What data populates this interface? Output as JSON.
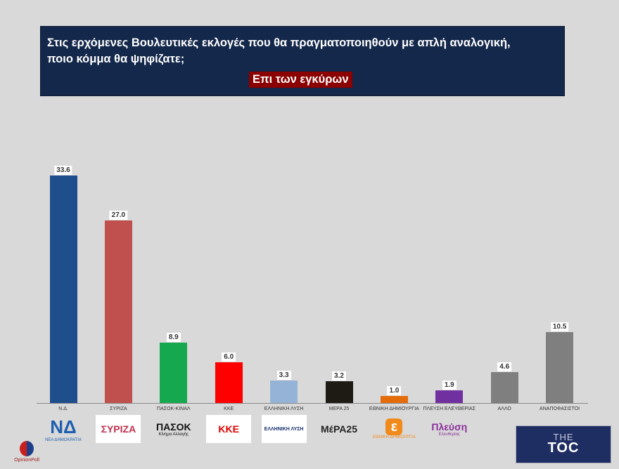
{
  "header": {
    "question_line1": "Στις ερχόμενες Βουλευτικές εκλογές που θα πραγματοποιηθούν με απλή αναλογική,",
    "question_line2": "ποιο κόμμα θα ψηφίζατε;",
    "subtitle": "Επι των εγκύρων"
  },
  "chart_data": {
    "type": "bar",
    "title": "Στις ερχόμενες Βουλευτικές εκλογές που θα πραγματοποιηθούν με απλή αναλογική, ποιο κόμμα θα ψηφίζατε;",
    "subtitle": "Επι των εγκύρων",
    "xlabel": "",
    "ylabel": "",
    "ylim": [
      0,
      35
    ],
    "grid": false,
    "legend": "none",
    "categories": [
      "Ν.Δ.",
      "ΣΥΡΙΖΑ",
      "ΠΑΣΟΚ-ΚΙΝΑΛ",
      "ΚΚΕ",
      "ΕΛΛΗΝΙΚΗ ΛΥΣΗ",
      "ΜΕΡΑ 25",
      "ΕΘΝΙΚΗ ΔΗΜΙΟΥΡΓΙΑ",
      "ΠΛΕΥΣΗ ΕΛΕΥΘΕΡΙΑΣ",
      "ΑΛΛΟ",
      "ΑΝΑΠΟΦΑΣΙΣΤΟΙ"
    ],
    "values": [
      33.6,
      27.0,
      8.9,
      6.0,
      3.3,
      3.2,
      1.0,
      1.9,
      4.6,
      10.5
    ],
    "value_labels": [
      "33.6",
      "27.0",
      "8.9",
      "6.0",
      "3.3",
      "3.2",
      "1.0",
      "1.9",
      "4.6",
      "10.5"
    ],
    "colors": [
      "#1f4e8c",
      "#c0504d",
      "#16a84f",
      "#ff0000",
      "#95b3d7",
      "#1e1a14",
      "#e46c0a",
      "#7030a0",
      "#7f7f7f",
      "#7f7f7f"
    ]
  },
  "logos": [
    {
      "name": "nd-logo",
      "text": "ΝΔ",
      "sub": "ΝΕΑ ΔΗΜΟΚΡΑΤΙΑ",
      "color": "#1f5fb0"
    },
    {
      "name": "syriza-logo",
      "text": "ΣΥΡΙΖΑ",
      "sub": "",
      "color": "#c0304d"
    },
    {
      "name": "pasok-logo",
      "text": "ΠΑΣΟΚ",
      "sub": "Κίνημα Αλλαγής",
      "color": "#111111"
    },
    {
      "name": "kke-logo",
      "text": "ΚΚΕ",
      "sub": "",
      "color": "#e00000"
    },
    {
      "name": "elliniki-lysi-logo",
      "text": "ΕΛΛΗΝΙΚΗ ΛΥΣΗ",
      "sub": "",
      "color": "#1a2f6e"
    },
    {
      "name": "mera25-logo",
      "text": "ΜέΡΑ25",
      "sub": "",
      "color": "#222222"
    },
    {
      "name": "ethniki-dimiourgia-logo",
      "text": "ε",
      "sub": "ΕΘΝΙΚΗ ΔΗΜΙΟΥΡΓΙΑ",
      "color": "#f08a1c"
    },
    {
      "name": "plefsi-logo",
      "text": "Πλεύση",
      "sub": "Ελευθερίας",
      "color": "#8a2c9a"
    }
  ],
  "branding": {
    "opinion_poll": "OpinionPoll",
    "toc_the": "THE",
    "toc_main": "TOC"
  }
}
